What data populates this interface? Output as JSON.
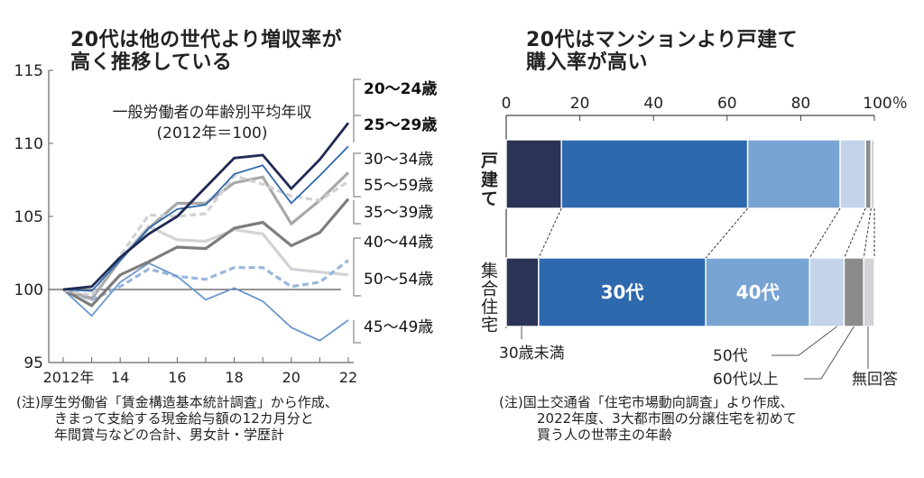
{
  "left_title": [
    "20代は他の世代より増収率が",
    "高く推移している"
  ],
  "right_title": [
    "20代はマンションより戸建て",
    "購入率が高い"
  ],
  "left_note": [
    "(注)厚生労働省「賃金構造基本統計調査」から作成、",
    "きまって支給する現金給与額の12カ月分と",
    "年間賞与などの合計、男女計・学歴計"
  ],
  "right_note": [
    "(注)国土交通省「住宅市場動向調査」より作成、",
    "2022年度、3大都市圏の分譲住宅を初めて",
    "買う人の世帯主の年齢"
  ],
  "chart_data": [
    {
      "type": "line",
      "title": "20代は他の世代より増収率が高く推移している",
      "subtitle": [
        "一般労働者の年齢別平均年収",
        "(2012年＝100)"
      ],
      "xlabel": "",
      "ylabel": "",
      "x": [
        2012,
        2013,
        2014,
        2015,
        2016,
        2017,
        2018,
        2019,
        2020,
        2021,
        2022
      ],
      "xtick_labels": [
        "2012年",
        "14",
        "16",
        "18",
        "20",
        "22"
      ],
      "xticks": [
        2012,
        2014,
        2016,
        2018,
        2020,
        2022
      ],
      "yticks": [
        95,
        100,
        105,
        110,
        115
      ],
      "ylim": [
        95,
        115
      ],
      "reference_line": 100,
      "grid": false,
      "legend": "right (direct labels)",
      "series": [
        {
          "name": "20〜24歳",
          "color": "#1f2a55",
          "style": "solid",
          "width": "thick",
          "bold": true,
          "values": [
            100,
            100.2,
            102.2,
            103.8,
            105.0,
            107.0,
            109.0,
            109.2,
            106.9,
            108.9,
            111.4
          ]
        },
        {
          "name": "25〜29歳",
          "color": "#2f6aab",
          "style": "solid",
          "width": "thin",
          "bold": true,
          "values": [
            100,
            99.9,
            102.0,
            104.2,
            105.5,
            105.8,
            107.9,
            108.5,
            105.9,
            107.8,
            109.8
          ]
        },
        {
          "name": "30〜34歳",
          "color": "#a8a8a8",
          "style": "solid",
          "width": "thick",
          "bold": false,
          "values": [
            100,
            99.4,
            102.0,
            104.2,
            105.9,
            105.9,
            107.3,
            107.7,
            104.5,
            106.1,
            108.0
          ]
        },
        {
          "name": "55〜59歳",
          "color": "#cfd1d5",
          "style": "dashed",
          "width": "thick",
          "bold": false,
          "values": [
            100,
            99.6,
            102.3,
            105.1,
            105.0,
            105.2,
            107.8,
            107.2,
            106.4,
            106.1,
            107.4
          ]
        },
        {
          "name": "35〜39歳",
          "color": "#7d7d7d",
          "style": "solid",
          "width": "thick",
          "bold": false,
          "values": [
            100,
            98.9,
            101.0,
            101.9,
            102.9,
            102.8,
            104.2,
            104.6,
            103.0,
            103.9,
            106.2
          ]
        },
        {
          "name": "40〜44歳",
          "color": "#9ab6dc",
          "style": "dashed",
          "width": "thick",
          "bold": false,
          "values": [
            100,
            99.3,
            100.2,
            101.4,
            100.9,
            100.7,
            101.5,
            101.5,
            100.2,
            100.5,
            102.0
          ]
        },
        {
          "name": "50〜54歳",
          "color": "#d2d3d6",
          "style": "solid",
          "width": "thick",
          "bold": false,
          "values": [
            100,
            99.3,
            102.1,
            104.3,
            103.4,
            103.3,
            104.1,
            103.8,
            101.4,
            101.2,
            101.0
          ]
        },
        {
          "name": "45〜49歳",
          "color": "#6b97cc",
          "style": "solid",
          "width": "thin",
          "bold": false,
          "values": [
            100,
            98.2,
            100.5,
            101.8,
            100.9,
            99.3,
            100.1,
            99.2,
            97.4,
            96.5,
            97.9
          ]
        }
      ]
    },
    {
      "type": "bar",
      "orientation": "horizontal",
      "stacked": true,
      "title": "20代はマンションより戸建て購入率が高い",
      "xlim": [
        0,
        100
      ],
      "xticks": [
        0,
        20,
        40,
        60,
        80,
        100
      ],
      "xtick_labels": [
        "0",
        "20",
        "40",
        "60",
        "80",
        "100％"
      ],
      "categories": [
        "戸建て",
        "集合住宅"
      ],
      "series": [
        {
          "name": "30歳未満",
          "color": "#2b3456",
          "values": [
            15.0,
            8.8
          ]
        },
        {
          "name": "30代",
          "color": "#2e69ad",
          "values": [
            50.6,
            45.4
          ]
        },
        {
          "name": "40代",
          "color": "#78a4d3",
          "values": [
            25.1,
            28.2
          ]
        },
        {
          "name": "50代",
          "color": "#c2d3ea",
          "values": [
            6.9,
            9.4
          ]
        },
        {
          "name": "60代以上",
          "color": "#8a8b8d",
          "values": [
            1.5,
            5.3
          ]
        },
        {
          "name": "無回答",
          "color": "#d2d3d6",
          "values": [
            0.9,
            2.9
          ]
        }
      ],
      "inbar_labels": [
        "30代",
        "40代"
      ],
      "callouts": [
        "30歳未満",
        "50代",
        "60代以上",
        "無回答"
      ]
    }
  ]
}
